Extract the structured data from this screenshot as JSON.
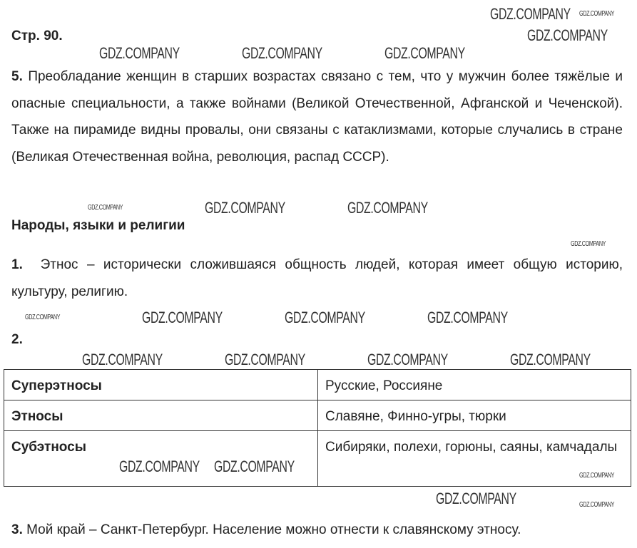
{
  "page_header": "Стр. 90.",
  "watermark": "GDZ.COMPANY",
  "q5": {
    "num": "5.",
    "text": "Преобладание женщин в старших возрастах связано с тем, что у мужчин более тяжёлые и опасные специальности, а также войнами (Великой Отечественной, Афганской и Чеченской). Также на пирамиде видны провалы, они связаны с катаклизмами, которые случались в стране (Великая Отечественная война, революция, распад СССР)."
  },
  "section_title": "Народы, языки и религии",
  "q1": {
    "num": "1.",
    "text": "Этнос – исторически сложившаяся общность людей, которая имеет общую историю, культуру, религию."
  },
  "q2": {
    "num": "2."
  },
  "table": {
    "rows": [
      {
        "term": "Суперэтносы",
        "examples": "Русские, Россияне"
      },
      {
        "term": "Этносы",
        "examples": "Славяне, Финно-угры, тюрки"
      },
      {
        "term": "Субэтносы",
        "examples": "Сибиряки, полехи, горюны, саяны, камчадалы"
      }
    ]
  },
  "q3": {
    "num": "3.",
    "text": "Мой край – Санкт-Петербург. Население можно отнести к славянскому этносу."
  }
}
